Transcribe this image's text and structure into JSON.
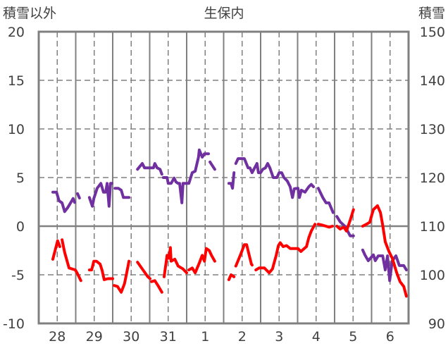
{
  "chart_data": {
    "type": "line",
    "title": "生保内",
    "ylabel_left": "積雪以外",
    "ylabel_right": "積雪",
    "ylim_left": [
      -10,
      20
    ],
    "ylim_right": [
      90,
      150
    ],
    "yticks_left": [
      "20",
      "15",
      "10",
      "5",
      "0",
      "-5",
      "-10"
    ],
    "yticks_right": [
      "150",
      "140",
      "130",
      "120",
      "110",
      "100",
      "90"
    ],
    "categories": [
      "28",
      "29",
      "30",
      "31",
      "1",
      "2",
      "3",
      "4",
      "5",
      "6"
    ],
    "xlim_days": [
      0,
      10
    ],
    "grid": true,
    "colors": {
      "frame": "#808080",
      "grid": "#808080"
    },
    "series": [
      {
        "axis": "right",
        "color": "#7030A0",
        "segments": [
          [
            [
              0.38,
              117.0
            ],
            [
              0.48,
              117.0
            ],
            [
              0.55,
              115.2
            ],
            [
              0.63,
              114.8
            ],
            [
              0.7,
              113.0
            ],
            [
              0.78,
              113.8
            ],
            [
              0.86,
              114.8
            ],
            [
              0.93,
              115.7
            ],
            [
              0.97,
              114.9
            ]
          ],
          [
            [
              1.05,
              116.7
            ],
            [
              1.1,
              115.8
            ]
          ],
          [
            [
              1.37,
              115.9
            ],
            [
              1.45,
              114.1
            ],
            [
              1.49,
              115.7
            ],
            [
              1.58,
              117.8
            ],
            [
              1.68,
              118.8
            ],
            [
              1.75,
              117.0
            ],
            [
              1.81,
              117.0
            ],
            [
              1.85,
              118.8
            ],
            [
              1.9,
              114.1
            ],
            [
              1.94,
              118.8
            ],
            [
              1.98,
              118.8
            ]
          ],
          [
            [
              2.06,
              117.8
            ],
            [
              2.15,
              117.8
            ],
            [
              2.23,
              117.4
            ],
            [
              2.29,
              115.9
            ],
            [
              2.44,
              115.9
            ]
          ],
          [
            [
              2.67,
              121.7
            ],
            [
              2.8,
              122.9
            ],
            [
              2.86,
              122.0
            ],
            [
              3.1,
              122.0
            ],
            [
              3.14,
              122.9
            ],
            [
              3.2,
              122.0
            ],
            [
              3.28,
              121.7
            ],
            [
              3.33,
              120.7
            ]
          ],
          [
            [
              3.37,
              120.0
            ],
            [
              3.47,
              120.0
            ],
            [
              3.5,
              118.8
            ],
            [
              3.58,
              118.8
            ],
            [
              3.66,
              119.9
            ],
            [
              3.71,
              119.1
            ],
            [
              3.77,
              118.8
            ],
            [
              3.81,
              118.8
            ],
            [
              3.87,
              114.8
            ],
            [
              3.9,
              118.8
            ],
            [
              3.96,
              118.8
            ],
            [
              4.06,
              118.8
            ],
            [
              4.15,
              121.0
            ],
            [
              4.23,
              121.3
            ],
            [
              4.32,
              124.2
            ],
            [
              4.34,
              125.7
            ],
            [
              4.42,
              124.2
            ],
            [
              4.48,
              124.9
            ],
            [
              4.59,
              124.9
            ]
          ],
          [
            [
              4.63,
              123.2
            ],
            [
              4.76,
              121.7
            ]
          ],
          [
            [
              5.14,
              118.8
            ],
            [
              5.2,
              118.8
            ],
            [
              5.24,
              117.8
            ],
            [
              5.28,
              121.0
            ]
          ],
          [
            [
              5.33,
              122.9
            ],
            [
              5.39,
              123.9
            ],
            [
              5.56,
              123.9
            ],
            [
              5.66,
              122.0
            ],
            [
              5.71,
              122.0
            ],
            [
              5.77,
              121.0
            ],
            [
              5.9,
              122.9
            ],
            [
              5.94,
              121.0
            ],
            [
              6.0,
              121.0
            ],
            [
              6.06,
              121.7
            ],
            [
              6.13,
              122.0
            ],
            [
              6.19,
              122.9
            ],
            [
              6.25,
              122.0
            ],
            [
              6.34,
              120.0
            ],
            [
              6.44,
              120.0
            ],
            [
              6.5,
              121.0
            ],
            [
              6.57,
              121.0
            ],
            [
              6.63,
              120.0
            ],
            [
              6.72,
              119.3
            ],
            [
              6.8,
              118.1
            ],
            [
              6.86,
              115.9
            ],
            [
              6.91,
              117.7
            ],
            [
              7.01,
              117.8
            ],
            [
              7.05,
              115.9
            ],
            [
              7.1,
              117.4
            ],
            [
              7.2,
              117.0
            ],
            [
              7.3,
              118.1
            ],
            [
              7.37,
              118.6
            ],
            [
              7.43,
              118.1
            ]
          ],
          [
            [
              7.56,
              117.8
            ],
            [
              7.68,
              115.9
            ],
            [
              7.77,
              114.8
            ],
            [
              7.85,
              114.8
            ],
            [
              7.96,
              112.8
            ]
          ],
          [
            [
              8.06,
              112.0
            ],
            [
              8.15,
              110.9
            ],
            [
              8.29,
              109.9
            ],
            [
              8.42,
              108.0
            ],
            [
              8.51,
              108.0
            ]
          ],
          [
            [
              8.76,
              105.1
            ],
            [
              8.82,
              104.1
            ],
            [
              8.91,
              102.9
            ],
            [
              9.05,
              104.1
            ],
            [
              9.1,
              102.9
            ],
            [
              9.18,
              103.9
            ],
            [
              9.3,
              103.9
            ],
            [
              9.37,
              101.0
            ],
            [
              9.43,
              103.9
            ],
            [
              9.49,
              98.8
            ],
            [
              9.56,
              102.9
            ],
            [
              9.66,
              103.9
            ],
            [
              9.75,
              101.9
            ],
            [
              9.87,
              101.9
            ],
            [
              9.94,
              101.0
            ]
          ]
        ]
      },
      {
        "axis": "left",
        "color": "#FF0000",
        "segments": [
          [
            [
              0.38,
              -3.4
            ],
            [
              0.51,
              -1.5
            ],
            [
              0.57,
              -2.1
            ]
          ],
          [
            [
              0.63,
              -1.4
            ],
            [
              0.7,
              -2.7
            ],
            [
              0.82,
              -4.3
            ],
            [
              0.99,
              -4.5
            ],
            [
              1.05,
              -4.9
            ],
            [
              1.14,
              -5.6
            ]
          ],
          [
            [
              1.37,
              -4.5
            ],
            [
              1.43,
              -4.5
            ],
            [
              1.49,
              -3.6
            ],
            [
              1.56,
              -3.6
            ],
            [
              1.66,
              -3.9
            ],
            [
              1.71,
              -4.5
            ],
            [
              1.77,
              -5.5
            ],
            [
              1.87,
              -5.4
            ],
            [
              2.0,
              -5.4
            ]
          ],
          [
            [
              2.04,
              -6.1
            ],
            [
              2.13,
              -6.2
            ],
            [
              2.23,
              -6.8
            ],
            [
              2.32,
              -5.9
            ],
            [
              2.38,
              -4.8
            ],
            [
              2.44,
              -3.6
            ]
          ],
          [
            [
              2.67,
              -3.7
            ],
            [
              2.82,
              -4.5
            ],
            [
              2.95,
              -5.2
            ],
            [
              3.01,
              -5.4
            ]
          ],
          [
            [
              3.05,
              -5.7
            ],
            [
              3.14,
              -5.6
            ],
            [
              3.24,
              -6.2
            ],
            [
              3.33,
              -6.8
            ]
          ],
          [
            [
              3.39,
              -5.2
            ],
            [
              3.47,
              -3.0
            ],
            [
              3.52,
              -3.3
            ],
            [
              3.56,
              -2.2
            ],
            [
              3.58,
              -3.6
            ],
            [
              3.68,
              -3.4
            ],
            [
              3.77,
              -4.1
            ],
            [
              3.9,
              -4.4
            ],
            [
              4.0,
              -4.8
            ]
          ],
          [
            [
              4.06,
              -4.5
            ],
            [
              4.15,
              -4.3
            ],
            [
              4.23,
              -4.8
            ],
            [
              4.34,
              -3.8
            ],
            [
              4.42,
              -3.0
            ],
            [
              4.48,
              -3.6
            ],
            [
              4.53,
              -2.3
            ],
            [
              4.61,
              -2.5
            ],
            [
              4.67,
              -3.0
            ],
            [
              4.76,
              -3.6
            ]
          ],
          [
            [
              5.14,
              -5.5
            ],
            [
              5.2,
              -5.0
            ],
            [
              5.28,
              -5.2
            ]
          ],
          [
            [
              5.33,
              -4.1
            ],
            [
              5.47,
              -2.8
            ],
            [
              5.56,
              -1.9
            ],
            [
              5.62,
              -1.9
            ],
            [
              5.75,
              -3.9
            ],
            [
              5.77,
              -4.0
            ]
          ],
          [
            [
              5.87,
              -4.5
            ],
            [
              5.96,
              -4.3
            ],
            [
              6.1,
              -4.3
            ],
            [
              6.23,
              -4.8
            ],
            [
              6.32,
              -4.4
            ],
            [
              6.42,
              -3.0
            ],
            [
              6.48,
              -2.0
            ],
            [
              6.53,
              -1.7
            ],
            [
              6.61,
              -2.1
            ],
            [
              6.7,
              -2.0
            ],
            [
              6.8,
              -2.3
            ],
            [
              7.01,
              -2.3
            ],
            [
              7.09,
              -2.6
            ],
            [
              7.18,
              -2.3
            ],
            [
              7.24,
              -2.1
            ],
            [
              7.3,
              -1.2
            ],
            [
              7.37,
              -0.5
            ],
            [
              7.47,
              0.2
            ]
          ],
          [
            [
              7.56,
              0.2
            ],
            [
              7.68,
              0.1
            ],
            [
              7.85,
              -0.1
            ],
            [
              7.94,
              0.0
            ]
          ],
          [
            [
              8.06,
              0.0
            ],
            [
              8.15,
              -0.3
            ],
            [
              8.25,
              -0.1
            ],
            [
              8.32,
              -0.5
            ],
            [
              8.42,
              0.6
            ],
            [
              8.51,
              1.7
            ]
          ],
          [
            [
              8.76,
              0.0
            ],
            [
              8.86,
              0.2
            ],
            [
              8.95,
              0.4
            ],
            [
              9.01,
              1.2
            ],
            [
              9.05,
              1.7
            ],
            [
              9.16,
              2.1
            ],
            [
              9.24,
              1.4
            ],
            [
              9.3,
              0.1
            ],
            [
              9.37,
              -1.6
            ],
            [
              9.47,
              -2.6
            ],
            [
              9.56,
              -3.3
            ],
            [
              9.68,
              -4.8
            ],
            [
              9.77,
              -5.7
            ],
            [
              9.87,
              -6.2
            ],
            [
              9.94,
              -7.2
            ]
          ]
        ]
      }
    ]
  }
}
